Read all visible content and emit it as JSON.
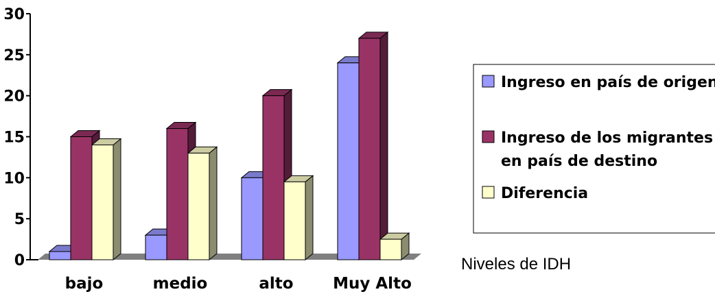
{
  "chart_data": {
    "type": "bar",
    "title": "",
    "xlabel": "Niveles de IDH",
    "ylabel": "",
    "ylim": [
      0,
      30
    ],
    "yticks": [
      0,
      5,
      10,
      15,
      20,
      25,
      30
    ],
    "grid": false,
    "legend_position": "right",
    "categories": [
      "bajo",
      "medio",
      "alto",
      "Muy Alto"
    ],
    "series": [
      {
        "name": "Ingreso en país de origen",
        "values": [
          1,
          3,
          10,
          24
        ],
        "color": "#9999ff"
      },
      {
        "name": "Ingreso de los migrantes en país de destino",
        "values": [
          15,
          16,
          20,
          27
        ],
        "color": "#993366"
      },
      {
        "name": "Diferencia",
        "values": [
          14,
          13,
          9.5,
          2.5
        ],
        "color": "#ffffcc"
      }
    ]
  }
}
